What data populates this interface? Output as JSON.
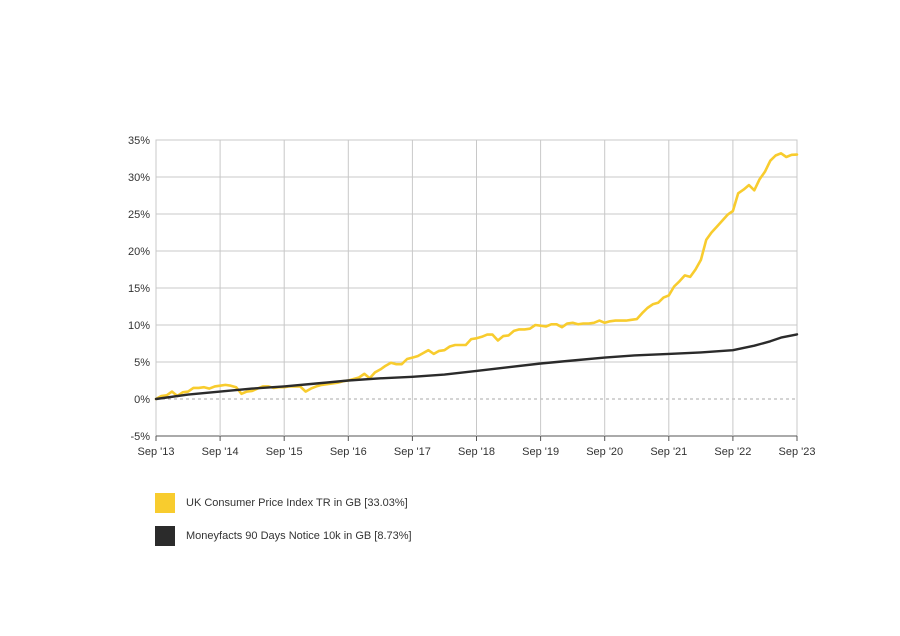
{
  "chart_data": {
    "type": "line",
    "title": "",
    "xlabel": "",
    "ylabel": "",
    "x_tick_labels": [
      "Sep '13",
      "Sep '14",
      "Sep '15",
      "Sep '16",
      "Sep '17",
      "Sep '18",
      "Sep '19",
      "Sep '20",
      "Sep '21",
      "Sep '22",
      "Sep '23"
    ],
    "y_tick_labels": [
      "-5%",
      "0%",
      "5%",
      "10%",
      "15%",
      "20%",
      "25%",
      "30%",
      "35%"
    ],
    "ylim": [
      -5,
      35
    ],
    "xlim": [
      "2013-09",
      "2023-09"
    ],
    "y_unit": "%",
    "grid": true,
    "zero_line": "dashed",
    "legend_position": "bottom-left",
    "series": [
      {
        "name": "UK Consumer Price Index TR in GB [33.03%]",
        "color": "#F8CC2E",
        "points": [
          [
            "2013-09",
            0.0
          ],
          [
            "2013-10",
            0.4
          ],
          [
            "2013-11",
            0.5
          ],
          [
            "2013-12",
            1.0
          ],
          [
            "2014-01",
            0.4
          ],
          [
            "2014-02",
            0.9
          ],
          [
            "2014-03",
            1.0
          ],
          [
            "2014-04",
            1.5
          ],
          [
            "2014-05",
            1.5
          ],
          [
            "2014-06",
            1.6
          ],
          [
            "2014-07",
            1.4
          ],
          [
            "2014-08",
            1.7
          ],
          [
            "2014-09",
            1.8
          ],
          [
            "2014-10",
            1.9
          ],
          [
            "2014-11",
            1.8
          ],
          [
            "2014-12",
            1.6
          ],
          [
            "2015-01",
            0.7
          ],
          [
            "2015-02",
            1.0
          ],
          [
            "2015-03",
            1.1
          ],
          [
            "2015-04",
            1.4
          ],
          [
            "2015-05",
            1.7
          ],
          [
            "2015-06",
            1.7
          ],
          [
            "2015-07",
            1.5
          ],
          [
            "2015-08",
            1.6
          ],
          [
            "2015-09",
            1.6
          ],
          [
            "2015-10",
            1.7
          ],
          [
            "2015-11",
            1.7
          ],
          [
            "2015-12",
            1.7
          ],
          [
            "2016-01",
            1.0
          ],
          [
            "2016-02",
            1.4
          ],
          [
            "2016-03",
            1.7
          ],
          [
            "2016-04",
            1.9
          ],
          [
            "2016-05",
            2.0
          ],
          [
            "2016-06",
            2.1
          ],
          [
            "2016-07",
            2.2
          ],
          [
            "2016-08",
            2.4
          ],
          [
            "2016-09",
            2.5
          ],
          [
            "2016-10",
            2.7
          ],
          [
            "2016-11",
            2.9
          ],
          [
            "2016-12",
            3.4
          ],
          [
            "2017-01",
            2.8
          ],
          [
            "2017-02",
            3.6
          ],
          [
            "2017-03",
            4.0
          ],
          [
            "2017-04",
            4.5
          ],
          [
            "2017-05",
            4.9
          ],
          [
            "2017-06",
            4.7
          ],
          [
            "2017-07",
            4.7
          ],
          [
            "2017-08",
            5.4
          ],
          [
            "2017-09",
            5.6
          ],
          [
            "2017-10",
            5.8
          ],
          [
            "2017-11",
            6.2
          ],
          [
            "2017-12",
            6.6
          ],
          [
            "2018-01",
            6.1
          ],
          [
            "2018-02",
            6.5
          ],
          [
            "2018-03",
            6.6
          ],
          [
            "2018-04",
            7.1
          ],
          [
            "2018-05",
            7.3
          ],
          [
            "2018-06",
            7.3
          ],
          [
            "2018-07",
            7.3
          ],
          [
            "2018-08",
            8.1
          ],
          [
            "2018-09",
            8.2
          ],
          [
            "2018-10",
            8.4
          ],
          [
            "2018-11",
            8.7
          ],
          [
            "2018-12",
            8.7
          ],
          [
            "2019-01",
            7.9
          ],
          [
            "2019-02",
            8.5
          ],
          [
            "2019-03",
            8.6
          ],
          [
            "2019-04",
            9.2
          ],
          [
            "2019-05",
            9.4
          ],
          [
            "2019-06",
            9.4
          ],
          [
            "2019-07",
            9.5
          ],
          [
            "2019-08",
            10.0
          ],
          [
            "2019-09",
            9.9
          ],
          [
            "2019-10",
            9.8
          ],
          [
            "2019-11",
            10.1
          ],
          [
            "2019-12",
            10.1
          ],
          [
            "2020-01",
            9.7
          ],
          [
            "2020-02",
            10.2
          ],
          [
            "2020-03",
            10.3
          ],
          [
            "2020-04",
            10.1
          ],
          [
            "2020-05",
            10.2
          ],
          [
            "2020-06",
            10.2
          ],
          [
            "2020-07",
            10.3
          ],
          [
            "2020-08",
            10.6
          ],
          [
            "2020-09",
            10.3
          ],
          [
            "2020-10",
            10.5
          ],
          [
            "2020-11",
            10.6
          ],
          [
            "2020-12",
            10.6
          ],
          [
            "2021-01",
            10.6
          ],
          [
            "2021-02",
            10.7
          ],
          [
            "2021-03",
            10.8
          ],
          [
            "2021-04",
            11.6
          ],
          [
            "2021-05",
            12.3
          ],
          [
            "2021-06",
            12.8
          ],
          [
            "2021-07",
            13.0
          ],
          [
            "2021-08",
            13.7
          ],
          [
            "2021-09",
            14.0
          ],
          [
            "2021-10",
            15.2
          ],
          [
            "2021-11",
            15.9
          ],
          [
            "2021-12",
            16.7
          ],
          [
            "2022-01",
            16.5
          ],
          [
            "2022-02",
            17.5
          ],
          [
            "2022-03",
            18.8
          ],
          [
            "2022-04",
            21.5
          ],
          [
            "2022-05",
            22.5
          ],
          [
            "2022-06",
            23.3
          ],
          [
            "2022-07",
            24.1
          ],
          [
            "2022-08",
            24.9
          ],
          [
            "2022-09",
            25.4
          ],
          [
            "2022-10",
            27.8
          ],
          [
            "2022-11",
            28.3
          ],
          [
            "2022-12",
            28.9
          ],
          [
            "2023-01",
            28.2
          ],
          [
            "2023-02",
            29.7
          ],
          [
            "2023-03",
            30.7
          ],
          [
            "2023-04",
            32.2
          ],
          [
            "2023-05",
            32.9
          ],
          [
            "2023-06",
            33.2
          ],
          [
            "2023-07",
            32.7
          ],
          [
            "2023-08",
            33.0
          ],
          [
            "2023-09",
            33.03
          ]
        ]
      },
      {
        "name": "Moneyfacts 90 Days Notice 10k in GB [8.73%]",
        "color": "#2B2B2B",
        "points": [
          [
            "2013-09",
            0.0
          ],
          [
            "2014-03",
            0.6
          ],
          [
            "2014-09",
            1.0
          ],
          [
            "2015-03",
            1.4
          ],
          [
            "2015-09",
            1.7
          ],
          [
            "2016-03",
            2.1
          ],
          [
            "2016-09",
            2.5
          ],
          [
            "2017-03",
            2.8
          ],
          [
            "2017-09",
            3.0
          ],
          [
            "2018-03",
            3.3
          ],
          [
            "2018-09",
            3.8
          ],
          [
            "2019-03",
            4.3
          ],
          [
            "2019-09",
            4.8
          ],
          [
            "2020-03",
            5.2
          ],
          [
            "2020-09",
            5.6
          ],
          [
            "2021-03",
            5.9
          ],
          [
            "2021-09",
            6.1
          ],
          [
            "2022-03",
            6.3
          ],
          [
            "2022-09",
            6.6
          ],
          [
            "2023-01",
            7.2
          ],
          [
            "2023-04",
            7.8
          ],
          [
            "2023-06",
            8.3
          ],
          [
            "2023-09",
            8.73
          ]
        ]
      }
    ]
  }
}
